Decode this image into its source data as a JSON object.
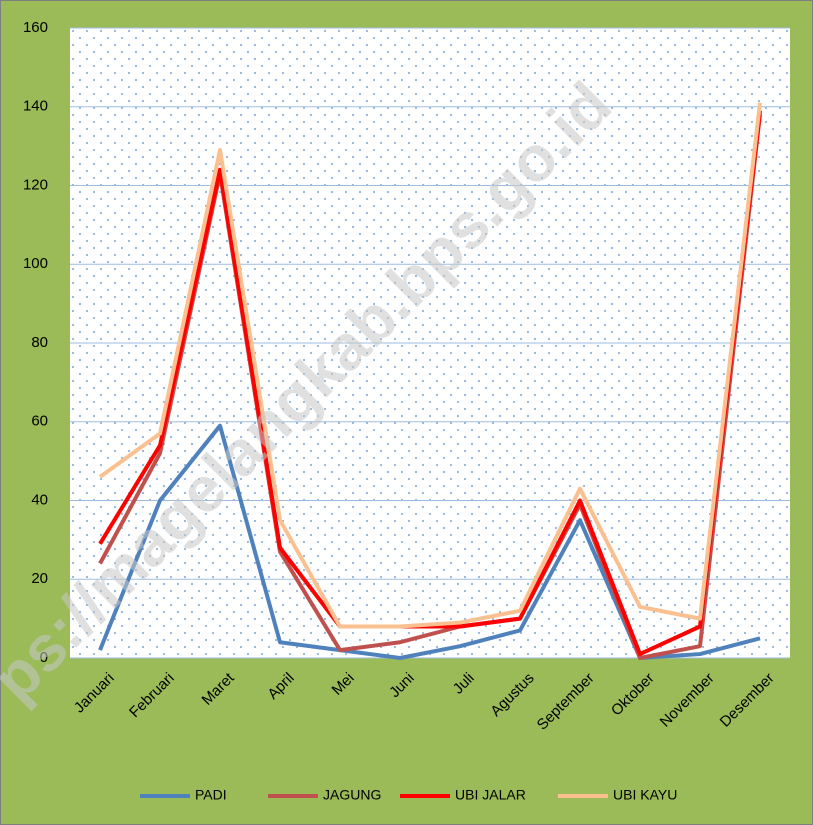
{
  "chart_data": {
    "type": "line",
    "categories": [
      "Januari",
      "Februari",
      "Maret",
      "April",
      "Mei",
      "Juni",
      "Juli",
      "Agustus",
      "September",
      "Oktober",
      "November",
      "Desember"
    ],
    "series": [
      {
        "name": "PADI",
        "color": "#4f81bd",
        "values": [
          2,
          40,
          59,
          4,
          2,
          0,
          3,
          7,
          35,
          0,
          1,
          5
        ]
      },
      {
        "name": "JAGUNG",
        "color": "#c0504d",
        "values": [
          24,
          52,
          123,
          27,
          2,
          4,
          8,
          10,
          39,
          0,
          3,
          138
        ]
      },
      {
        "name": "UBI JALAR",
        "color": "#ff0000",
        "values": [
          29,
          54,
          124,
          28,
          8,
          8,
          8,
          10,
          40,
          1,
          8,
          139
        ]
      },
      {
        "name": "UBI KAYU",
        "color": "#fac090",
        "values": [
          46,
          57,
          129,
          35,
          8,
          8,
          9,
          12,
          43,
          13,
          10,
          141
        ]
      }
    ],
    "ylim": [
      0,
      160
    ],
    "yticks": [
      0,
      20,
      40,
      60,
      80,
      100,
      120,
      140,
      160
    ],
    "grid": true,
    "legend": "bottom",
    "watermark": "ps://magelangkab.bps.go.id"
  }
}
